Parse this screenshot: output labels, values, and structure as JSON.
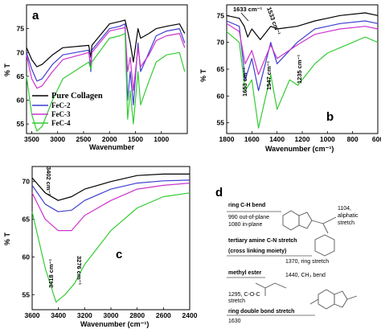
{
  "panels": {
    "a": {
      "letter": "a"
    },
    "b": {
      "letter": "b"
    },
    "c": {
      "letter": "c"
    },
    "d": {
      "letter": "d"
    }
  },
  "chart_data": [
    {
      "panel": "a",
      "type": "line",
      "xlabel": "Wavenumber",
      "ylabel": "% T",
      "xlim": [
        3600,
        500
      ],
      "ylim": [
        53,
        80
      ],
      "xticks": [
        3500,
        3000,
        2500,
        2000,
        1500,
        1000
      ],
      "yticks": [
        55,
        60,
        65,
        70,
        75
      ],
      "legend": [
        "Pure Collagen",
        "FeC-2",
        "FeC-3",
        "FeC-4"
      ],
      "series": [
        {
          "name": "Pure Collagen",
          "color": "#000000",
          "points": [
            [
              3600,
              71.0
            ],
            [
              3500,
              68.5
            ],
            [
              3400,
              67.0
            ],
            [
              3300,
              67.5
            ],
            [
              3100,
              69.5
            ],
            [
              2900,
              71.0
            ],
            [
              2400,
              71.5
            ],
            [
              2360,
              69.0
            ],
            [
              2340,
              71.5
            ],
            [
              2000,
              76.0
            ],
            [
              1800,
              76.5
            ],
            [
              1700,
              76.8
            ],
            [
              1650,
              74.5
            ],
            [
              1600,
              72.0
            ],
            [
              1540,
              68.0
            ],
            [
              1450,
              75.0
            ],
            [
              1400,
              73.0
            ],
            [
              1240,
              74.0
            ],
            [
              1100,
              75.0
            ],
            [
              900,
              75.5
            ],
            [
              650,
              76.0
            ],
            [
              550,
              74.0
            ]
          ]
        },
        {
          "name": "FeC-2",
          "color": "#3f3fd0",
          "points": [
            [
              3600,
              70.0
            ],
            [
              3500,
              66.5
            ],
            [
              3400,
              64.0
            ],
            [
              3300,
              64.5
            ],
            [
              3100,
              67.5
            ],
            [
              2900,
              69.5
            ],
            [
              2400,
              70.5
            ],
            [
              2360,
              66.0
            ],
            [
              2340,
              70.5
            ],
            [
              2000,
              75.0
            ],
            [
              1800,
              75.5
            ],
            [
              1700,
              76.0
            ],
            [
              1650,
              60.0
            ],
            [
              1600,
              66.0
            ],
            [
              1540,
              59.0
            ],
            [
              1450,
              72.0
            ],
            [
              1400,
              66.0
            ],
            [
              1240,
              70.0
            ],
            [
              1100,
              73.5
            ],
            [
              900,
              74.5
            ],
            [
              650,
              75.0
            ],
            [
              550,
              72.0
            ]
          ]
        },
        {
          "name": "FeC-3",
          "color": "#cc33cc",
          "points": [
            [
              3600,
              69.5
            ],
            [
              3500,
              64.5
            ],
            [
              3400,
              62.5
            ],
            [
              3300,
              63.0
            ],
            [
              3100,
              66.0
            ],
            [
              2900,
              68.5
            ],
            [
              2400,
              70.0
            ],
            [
              2360,
              67.5
            ],
            [
              2340,
              70.0
            ],
            [
              2000,
              74.5
            ],
            [
              1800,
              75.0
            ],
            [
              1700,
              75.2
            ],
            [
              1650,
              66.0
            ],
            [
              1600,
              69.0
            ],
            [
              1540,
              62.0
            ],
            [
              1450,
              71.0
            ],
            [
              1400,
              67.0
            ],
            [
              1240,
              69.5
            ],
            [
              1100,
              72.5
            ],
            [
              900,
              73.5
            ],
            [
              650,
              74.0
            ],
            [
              550,
              71.0
            ]
          ]
        },
        {
          "name": "FeC-4",
          "color": "#33cc33",
          "points": [
            [
              3600,
              65.0
            ],
            [
              3500,
              57.0
            ],
            [
              3400,
              53.5
            ],
            [
              3300,
              54.5
            ],
            [
              3100,
              60.0
            ],
            [
              2900,
              64.5
            ],
            [
              2400,
              68.0
            ],
            [
              2360,
              66.5
            ],
            [
              2340,
              68.0
            ],
            [
              2000,
              73.0
            ],
            [
              1800,
              73.5
            ],
            [
              1700,
              74.0
            ],
            [
              1650,
              56.0
            ],
            [
              1600,
              62.0
            ],
            [
              1540,
              55.0
            ],
            [
              1450,
              66.0
            ],
            [
              1400,
              59.0
            ],
            [
              1240,
              64.0
            ],
            [
              1100,
              68.0
            ],
            [
              900,
              69.5
            ],
            [
              650,
              70.0
            ],
            [
              550,
              66.0
            ]
          ]
        }
      ]
    },
    {
      "panel": "b",
      "type": "line",
      "xlabel": "Wavenumber (cm⁻¹)",
      "ylabel": "% T",
      "xlim": [
        1800,
        600
      ],
      "ylim": [
        53,
        77
      ],
      "xticks": [
        1800,
        1600,
        1400,
        1200,
        1000,
        800,
        600
      ],
      "yticks": [
        55,
        60,
        65,
        70,
        75
      ],
      "annotations": [
        "1633 cm⁻¹",
        "1533 cm⁻¹",
        "1653 cm⁻¹",
        "1547 cm⁻¹",
        "1235 cm⁻¹"
      ],
      "series": [
        {
          "name": "Pure Collagen",
          "color": "#000000",
          "points": [
            [
              1800,
              75.0
            ],
            [
              1700,
              74.5
            ],
            [
              1660,
              73.0
            ],
            [
              1633,
              71.0
            ],
            [
              1600,
              72.5
            ],
            [
              1533,
              70.5
            ],
            [
              1450,
              73.0
            ],
            [
              1400,
              72.5
            ],
            [
              1240,
              73.0
            ],
            [
              1100,
              74.0
            ],
            [
              1000,
              74.5
            ],
            [
              900,
              75.0
            ],
            [
              700,
              75.5
            ],
            [
              600,
              75.0
            ]
          ]
        },
        {
          "name": "FeC-2",
          "color": "#3f3fd0",
          "points": [
            [
              1800,
              74.0
            ],
            [
              1700,
              73.0
            ],
            [
              1653,
              63.0
            ],
            [
              1600,
              67.0
            ],
            [
              1547,
              61.0
            ],
            [
              1450,
              70.0
            ],
            [
              1400,
              66.0
            ],
            [
              1240,
              70.0
            ],
            [
              1100,
              72.5
            ],
            [
              1000,
              73.0
            ],
            [
              900,
              73.5
            ],
            [
              700,
              74.0
            ],
            [
              600,
              73.5
            ]
          ]
        },
        {
          "name": "FeC-3",
          "color": "#cc33cc",
          "points": [
            [
              1800,
              73.5
            ],
            [
              1700,
              72.0
            ],
            [
              1653,
              66.0
            ],
            [
              1600,
              68.5
            ],
            [
              1547,
              64.0
            ],
            [
              1450,
              69.5
            ],
            [
              1400,
              67.0
            ],
            [
              1240,
              69.5
            ],
            [
              1100,
              71.5
            ],
            [
              1000,
              72.0
            ],
            [
              900,
              72.5
            ],
            [
              700,
              73.0
            ],
            [
              600,
              72.5
            ]
          ]
        },
        {
          "name": "FeC-4",
          "color": "#33cc33",
          "points": [
            [
              1800,
              72.0
            ],
            [
              1700,
              70.0
            ],
            [
              1653,
              61.0
            ],
            [
              1600,
              63.0
            ],
            [
              1547,
              54.0
            ],
            [
              1450,
              64.0
            ],
            [
              1400,
              57.5
            ],
            [
              1300,
              63.0
            ],
            [
              1235,
              62.0
            ],
            [
              1100,
              66.0
            ],
            [
              1000,
              68.0
            ],
            [
              900,
              69.0
            ],
            [
              800,
              70.0
            ],
            [
              700,
              71.0
            ],
            [
              600,
              70.0
            ]
          ]
        }
      ]
    },
    {
      "panel": "c",
      "type": "line",
      "xlabel": "Wavenumber (cm⁻¹)",
      "ylabel": "% T",
      "xlim": [
        3600,
        2400
      ],
      "ylim": [
        53,
        72
      ],
      "xticks": [
        3600,
        3400,
        3200,
        3000,
        2800,
        2600,
        2400
      ],
      "yticks": [
        55,
        60,
        65,
        70
      ],
      "annotations": [
        "3402 cm⁻¹",
        "3418 cm⁻¹",
        "3276 cm⁻¹"
      ],
      "series": [
        {
          "name": "Pure Collagen",
          "color": "#000000",
          "points": [
            [
              3600,
              70.5
            ],
            [
              3500,
              68.5
            ],
            [
              3402,
              67.5
            ],
            [
              3300,
              68.0
            ],
            [
              3200,
              69.0
            ],
            [
              3000,
              70.0
            ],
            [
              2800,
              70.8
            ],
            [
              2600,
              71.0
            ],
            [
              2400,
              71.0
            ]
          ]
        },
        {
          "name": "FeC-2",
          "color": "#3f3fd0",
          "points": [
            [
              3600,
              69.5
            ],
            [
              3500,
              67.0
            ],
            [
              3402,
              66.0
            ],
            [
              3300,
              66.2
            ],
            [
              3200,
              67.5
            ],
            [
              3000,
              69.0
            ],
            [
              2800,
              69.8
            ],
            [
              2600,
              70.1
            ],
            [
              2400,
              70.2
            ]
          ]
        },
        {
          "name": "FeC-3",
          "color": "#cc33cc",
          "points": [
            [
              3600,
              68.5
            ],
            [
              3500,
              65.0
            ],
            [
              3402,
              63.5
            ],
            [
              3300,
              63.5
            ],
            [
              3200,
              65.5
            ],
            [
              3000,
              67.5
            ],
            [
              2800,
              69.0
            ],
            [
              2600,
              69.5
            ],
            [
              2400,
              69.8
            ]
          ]
        },
        {
          "name": "FeC-4",
          "color": "#33cc33",
          "points": [
            [
              3600,
              66.0
            ],
            [
              3500,
              58.5
            ],
            [
              3418,
              54.0
            ],
            [
              3350,
              55.0
            ],
            [
              3276,
              56.5
            ],
            [
              3200,
              59.0
            ],
            [
              3000,
              63.5
            ],
            [
              2800,
              66.5
            ],
            [
              2600,
              68.0
            ],
            [
              2400,
              68.5
            ]
          ]
        }
      ]
    }
  ],
  "schematic_d": {
    "labels": {
      "ring_ch_bend": "ring C-H bend",
      "oop": "990   out-of-plane",
      "inplane": "1080  in-plane",
      "n1104": "1104,",
      "aliphatic": "aliphatic",
      "stretch": "stretch",
      "tert_amine": "tertiary amine C-N stretch",
      "crosslink": "(cross linking moiety)",
      "ring1370": "1370, ring stretch",
      "methyl": "methyl ester",
      "ch3bend": "1440, CH₃ bend",
      "coc1": "1295, C-O-C",
      "coc2": "stretch",
      "ringdb": "ring double bond stretch",
      "n1630": "1630"
    }
  }
}
